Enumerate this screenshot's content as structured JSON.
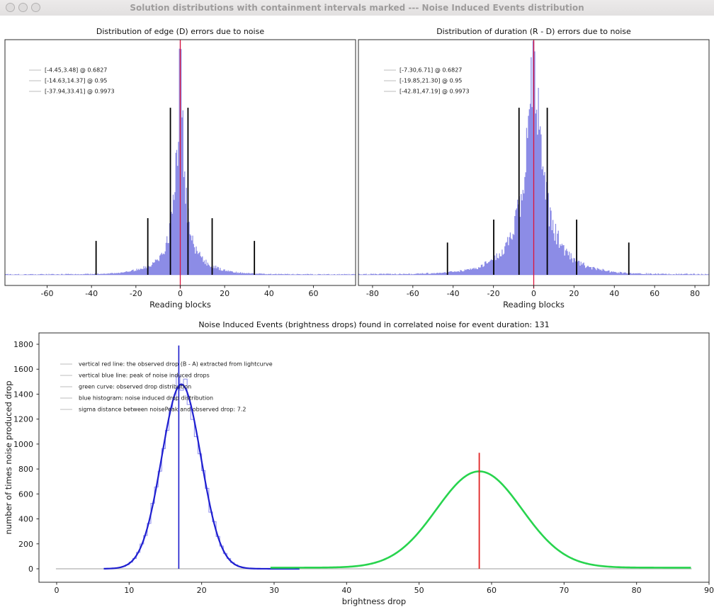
{
  "window": {
    "title": "Solution distributions with containment intervals marked --- Noise Induced Events distribution"
  },
  "colors": {
    "hist_fill": "#6f6fe0",
    "zero_line": "#8c8cd9",
    "marker_black": "#000000",
    "red_line": "#dc143c",
    "vline_red": "#e02424",
    "vline_blue": "#1a1acc",
    "curve_blue": "#1f1fd0",
    "curve_green": "#28d44e",
    "hist_steps_blue": "#8a8aec",
    "gray_baseline": "#bdbdbd",
    "spine": "#2b2b2b",
    "tick_text": "#1a1a1a",
    "legend_swatch": "#d4d4d4"
  },
  "chart_data": [
    {
      "id": "edge",
      "type": "bar",
      "subtype": "histogram",
      "title": "Distribution of edge (D) errors due to noise",
      "xlabel": "Reading blocks",
      "xlim": [
        -79,
        79
      ],
      "ylim": [
        -0.0454,
        1.005
      ],
      "xticks": [
        -60,
        -40,
        -20,
        0,
        20,
        40,
        60
      ],
      "red_line_x": 0,
      "containment_intervals": [
        {
          "range": [
            -4.45,
            3.48
          ],
          "level": 0.6827,
          "marker_height": 0.714
        },
        {
          "range": [
            -14.63,
            14.37
          ],
          "level": 0.95,
          "marker_height": 0.242
        },
        {
          "range": [
            -37.94,
            33.41
          ],
          "level": 0.9973,
          "marker_height": 0.145
        }
      ],
      "legend": {
        "items": [
          "[-4.45,3.48] @ 0.6827",
          "[-14.63,14.37] @ 0.95",
          "[-37.94,33.41] @ 0.9973"
        ],
        "x_swatch": 41,
        "x_text": 63,
        "y0": 77,
        "dy": 15
      },
      "hist_model": {
        "mix": [
          {
            "w": 0.78,
            "b": 1.9
          },
          {
            "w": 0.22,
            "b": 8.0
          }
        ],
        "bin": 0.4,
        "seed": 101,
        "floor": 0.004
      }
    },
    {
      "id": "duration",
      "type": "bar",
      "subtype": "histogram",
      "title": "Distribution of duration (R - D) errors due to noise",
      "xlabel": "Reading blocks",
      "xlim": [
        -87,
        87
      ],
      "ylim": [
        -0.0454,
        1.005
      ],
      "xticks": [
        -80,
        -60,
        -40,
        -20,
        0,
        20,
        40,
        60,
        80
      ],
      "red_line_x": 0,
      "containment_intervals": [
        {
          "range": [
            -7.3,
            6.71
          ],
          "level": 0.6827,
          "marker_height": 0.714
        },
        {
          "range": [
            -19.85,
            21.3
          ],
          "level": 0.95,
          "marker_height": 0.236
        },
        {
          "range": [
            -42.81,
            47.19
          ],
          "level": 0.9973,
          "marker_height": 0.138
        }
      ],
      "legend": {
        "items": [
          "[-7.30,6.71] @ 0.6827",
          "[-19.85,21.30] @ 0.95",
          "[-42.81,47.19] @ 0.9973"
        ],
        "x_swatch": 542,
        "x_text": 564,
        "y0": 77,
        "dy": 15
      },
      "hist_model": {
        "mix": [
          {
            "w": 0.62,
            "b": 3.8
          },
          {
            "w": 0.38,
            "b": 11.0
          }
        ],
        "bin": 0.45,
        "seed": 202,
        "floor": 0.005
      }
    },
    {
      "id": "events",
      "type": "line",
      "title": "Noise Induced Events (brightness drops) found in correlated noise for event duration: 131",
      "xlabel": "brightness drop",
      "ylabel": "number of times noise produced drop",
      "xlim": [
        -2.44,
        90
      ],
      "ylim": [
        -108,
        1891
      ],
      "xticks": [
        0,
        10,
        20,
        30,
        40,
        50,
        60,
        70,
        80,
        90
      ],
      "yticks": [
        0,
        200,
        400,
        600,
        800,
        1000,
        1200,
        1400,
        1600,
        1800
      ],
      "event_duration": 131,
      "sigma_distance": 7.2,
      "baseline": {
        "y": 0,
        "x_range": [
          -0.1,
          87.6
        ]
      },
      "series": [
        {
          "name": "noise induced drop histogram",
          "style": "steps",
          "mean": 17.2,
          "sigma": 2.7,
          "amplitude": 1480,
          "x_range": [
            7,
            31.5
          ],
          "bin": 0.5,
          "seed": 7,
          "color_key": "hist_steps_blue",
          "width": 1.1
        },
        {
          "name": "noise induced drop fit",
          "style": "curve",
          "mean": 17.2,
          "sigma": 2.7,
          "amplitude": 1480,
          "x_range": [
            6.5,
            33.5
          ],
          "color_key": "curve_blue",
          "width": 2.2
        },
        {
          "name": "observed drop distribution",
          "style": "curve",
          "mean": 58.3,
          "sigma": 5.9,
          "amplitude": 772,
          "floor": 9,
          "x_range": [
            29.5,
            87.6
          ],
          "color_key": "curve_green",
          "width": 2.6
        }
      ],
      "vlines": [
        {
          "name": "peak of noise induced drops",
          "x": 16.85,
          "y_range": [
            0,
            1790
          ],
          "color_key": "vline_blue",
          "width": 1.6
        },
        {
          "name": "observed drop (B - A)",
          "x": 58.3,
          "y_range": [
            0,
            930
          ],
          "color_key": "vline_red",
          "width": 1.8
        }
      ],
      "legend": {
        "items": [
          "vertical red line: the observed drop (B - A) extracted from lightcurve",
          "vertical blue line: peak of noise induced drops",
          "green curve: observed drop distribution",
          "blue histogram: noise induced drop distribution",
          "sigma distance between noisePeak and observed drop: 7.2"
        ],
        "x_swatch": 85,
        "x_text": 111,
        "y0": 492,
        "dy": 16
      }
    }
  ]
}
